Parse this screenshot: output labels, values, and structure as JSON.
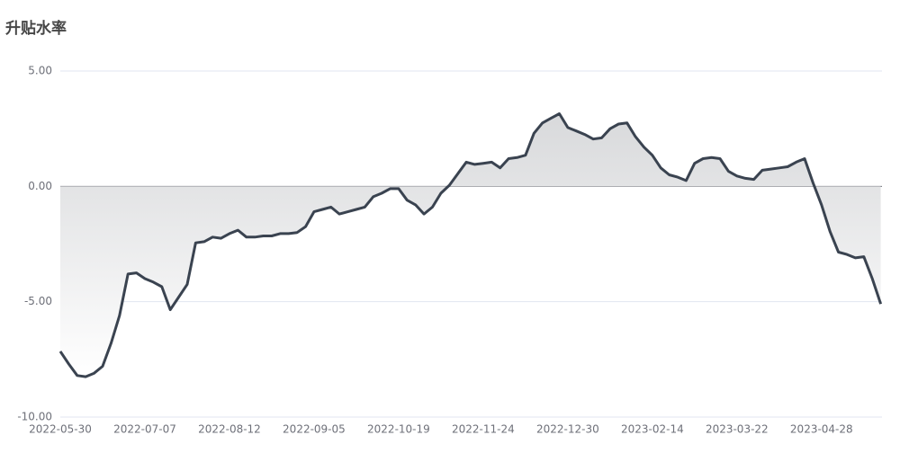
{
  "chart_data": {
    "type": "area",
    "title": "升贴水率",
    "categories": [
      "2022-05-30",
      null,
      null,
      null,
      null,
      null,
      null,
      null,
      null,
      null,
      "2022-07-07",
      null,
      null,
      null,
      null,
      null,
      null,
      null,
      null,
      null,
      "2022-08-12",
      null,
      null,
      null,
      null,
      null,
      null,
      null,
      null,
      null,
      "2022-09-05",
      null,
      null,
      null,
      null,
      null,
      null,
      null,
      null,
      null,
      "2022-10-19",
      null,
      null,
      null,
      null,
      null,
      null,
      null,
      null,
      null,
      "2022-11-24",
      null,
      null,
      null,
      null,
      null,
      null,
      null,
      null,
      null,
      "2022-12-30",
      null,
      null,
      null,
      null,
      null,
      null,
      null,
      null,
      null,
      "2023-02-14",
      null,
      null,
      null,
      null,
      null,
      null,
      null,
      null,
      null,
      "2023-03-22",
      null,
      null,
      null,
      null,
      null,
      null,
      null,
      null,
      null,
      "2023-04-28",
      null,
      null,
      null,
      null,
      null,
      null,
      null
    ],
    "values": [
      -7.15,
      -7.7,
      -8.2,
      -8.25,
      -8.1,
      -7.8,
      -6.8,
      -5.6,
      -3.8,
      -3.75,
      -4.0,
      -4.15,
      -4.35,
      -5.35,
      -4.8,
      -4.25,
      -2.45,
      -2.4,
      -2.2,
      -2.25,
      -2.05,
      -1.9,
      -2.2,
      -2.2,
      -2.15,
      -2.15,
      -2.05,
      -2.05,
      -2.0,
      -1.75,
      -1.1,
      -1.0,
      -0.9,
      -1.2,
      -1.1,
      -1.0,
      -0.9,
      -0.45,
      -0.3,
      -0.1,
      -0.1,
      -0.6,
      -0.8,
      -1.2,
      -0.9,
      -0.3,
      0.05,
      0.55,
      1.05,
      0.95,
      1.0,
      1.05,
      0.8,
      1.2,
      1.25,
      1.35,
      2.3,
      2.75,
      2.95,
      3.15,
      2.55,
      2.4,
      2.25,
      2.05,
      2.1,
      2.5,
      2.7,
      2.75,
      2.15,
      1.7,
      1.35,
      0.8,
      0.5,
      0.4,
      0.25,
      1.0,
      1.2,
      1.25,
      1.2,
      0.65,
      0.45,
      0.35,
      0.3,
      0.7,
      0.75,
      0.8,
      0.85,
      1.05,
      1.2,
      0.15,
      -0.8,
      -1.95,
      -2.85,
      -2.95,
      -3.1,
      -3.05,
      -4.0,
      -5.1
    ],
    "color": "#3a4350",
    "ylim": [
      -10,
      5
    ],
    "yticks": [
      {
        "value": -10,
        "label": "-10.00"
      },
      {
        "value": -5,
        "label": "-5.00"
      },
      {
        "value": 0,
        "label": "0.00"
      },
      {
        "value": 5,
        "label": "5.00"
      }
    ],
    "grid": true
  }
}
